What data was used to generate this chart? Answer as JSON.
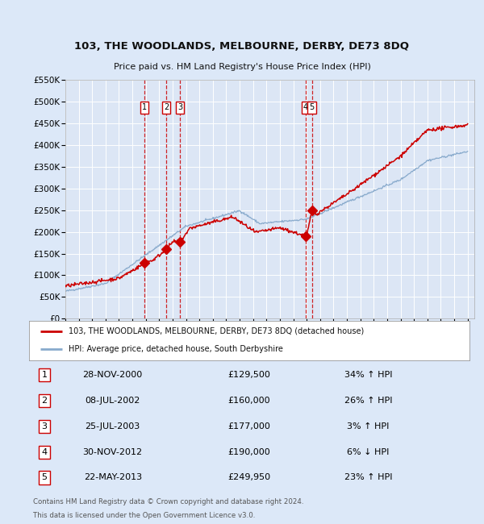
{
  "title": "103, THE WOODLANDS, MELBOURNE, DERBY, DE73 8DQ",
  "subtitle": "Price paid vs. HM Land Registry's House Price Index (HPI)",
  "legend_line1": "103, THE WOODLANDS, MELBOURNE, DERBY, DE73 8DQ (detached house)",
  "legend_line2": "HPI: Average price, detached house, South Derbyshire",
  "footer1": "Contains HM Land Registry data © Crown copyright and database right 2024.",
  "footer2": "This data is licensed under the Open Government Licence v3.0.",
  "background_color": "#dce8f8",
  "plot_bg_color": "#dce6f5",
  "grid_color": "#ffffff",
  "red_line_color": "#cc0000",
  "blue_line_color": "#88aacc",
  "ylim": [
    0,
    550000
  ],
  "yticks": [
    0,
    50000,
    100000,
    150000,
    200000,
    250000,
    300000,
    350000,
    400000,
    450000,
    500000,
    550000
  ],
  "ytick_labels": [
    "£0",
    "£50K",
    "£100K",
    "£150K",
    "£200K",
    "£250K",
    "£300K",
    "£350K",
    "£400K",
    "£450K",
    "£500K",
    "£550K"
  ],
  "sale_events": [
    {
      "num": 1,
      "date": "28-NOV-2000",
      "price": 129500,
      "pct": "34%",
      "dir": "↑",
      "x_year": 2000.91
    },
    {
      "num": 2,
      "date": "08-JUL-2002",
      "price": 160000,
      "pct": "26%",
      "dir": "↑",
      "x_year": 2002.52
    },
    {
      "num": 3,
      "date": "25-JUL-2003",
      "price": 177000,
      "pct": "3%",
      "dir": "↑",
      "x_year": 2003.56
    },
    {
      "num": 4,
      "date": "30-NOV-2012",
      "price": 190000,
      "pct": "6%",
      "dir": "↓",
      "x_year": 2012.91
    },
    {
      "num": 5,
      "date": "22-MAY-2013",
      "price": 249950,
      "pct": "23%",
      "dir": "↑",
      "x_year": 2013.39
    }
  ],
  "xmin": 1995,
  "xmax": 2025.5
}
